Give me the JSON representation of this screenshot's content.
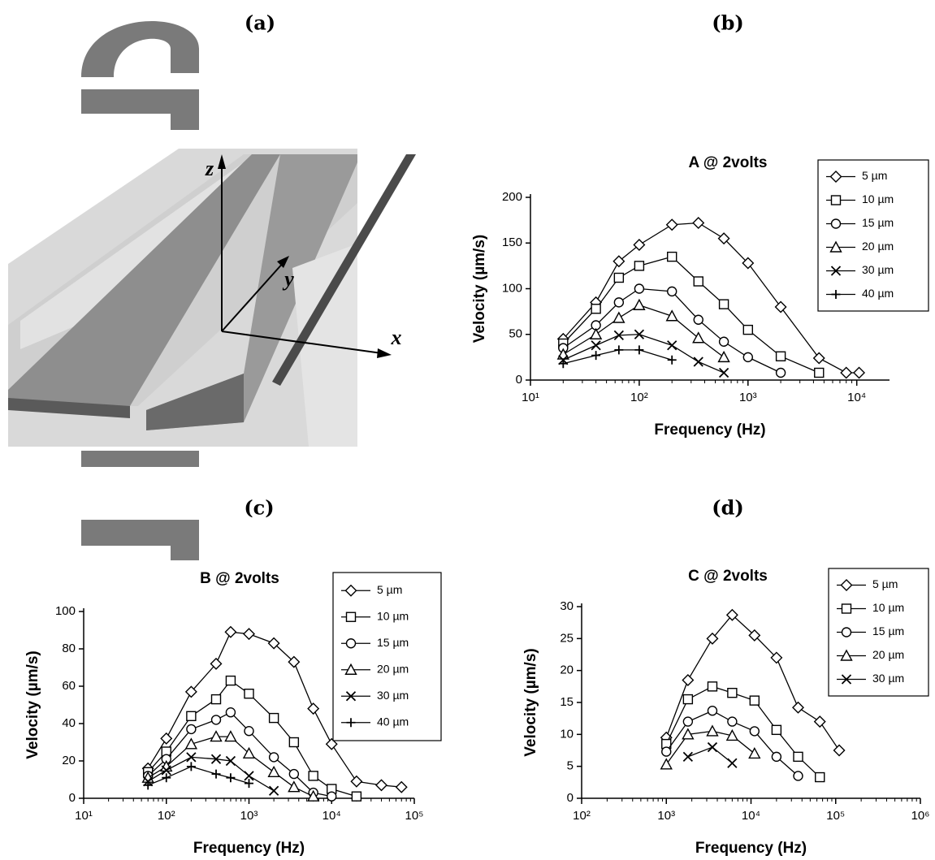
{
  "figure": {
    "panel_label": "(a)",
    "axis_z": "z",
    "axis_y": "y",
    "axis_x": "x"
  },
  "chart_data": [
    {
      "type": "line",
      "panel_label": "(b)",
      "title": "A @ 2volts",
      "xlabel": "Frequency (Hz)",
      "ylabel": "Velocity (µm/s)",
      "log_x": true,
      "xlim": [
        10,
        20000
      ],
      "ylim": [
        0,
        200
      ],
      "xticks": [
        {
          "value": 10,
          "label": "10¹"
        },
        {
          "value": 100,
          "label": "10²"
        },
        {
          "value": 1000,
          "label": "10³"
        },
        {
          "value": 10000,
          "label": "10⁴"
        }
      ],
      "yticks": [
        0,
        50,
        100,
        150,
        200
      ],
      "x": [
        20,
        40,
        65,
        100,
        200,
        350,
        600,
        1000,
        2000,
        4500,
        8000,
        10500
      ],
      "series": [
        {
          "name": "5 µm",
          "marker": "diamond",
          "color": "#000000",
          "values": [
            45,
            85,
            130,
            148,
            170,
            172,
            155,
            128,
            80,
            24,
            8,
            8
          ]
        },
        {
          "name": "10 µm",
          "marker": "square",
          "color": "#000000",
          "values": [
            40,
            78,
            112,
            125,
            135,
            108,
            83,
            55,
            26,
            8,
            null,
            null
          ]
        },
        {
          "name": "15 µm",
          "marker": "circle",
          "color": "#000000",
          "values": [
            35,
            60,
            85,
            100,
            97,
            66,
            42,
            25,
            8,
            null,
            null,
            null
          ]
        },
        {
          "name": "20 µm",
          "marker": "triangle",
          "color": "#000000",
          "values": [
            28,
            50,
            68,
            82,
            70,
            46,
            25,
            null,
            null,
            null,
            null,
            null
          ]
        },
        {
          "name": "30 µm",
          "marker": "cross",
          "color": "#000000",
          "values": [
            22,
            38,
            49,
            50,
            38,
            20,
            8,
            null,
            null,
            null,
            null,
            null
          ]
        },
        {
          "name": "40 µm",
          "marker": "plus",
          "color": "#000000",
          "values": [
            18,
            27,
            33,
            33,
            22,
            null,
            null,
            null,
            null,
            null,
            null,
            null
          ]
        }
      ]
    },
    {
      "type": "line",
      "panel_label": "(c)",
      "title": "B @ 2volts",
      "xlabel": "Frequency (Hz)",
      "ylabel": "Velocity (µm/s)",
      "log_x": true,
      "xlim": [
        10,
        100000
      ],
      "ylim": [
        0,
        100
      ],
      "xticks": [
        {
          "value": 10,
          "label": "10¹"
        },
        {
          "value": 100,
          "label": "10²"
        },
        {
          "value": 1000,
          "label": "10³"
        },
        {
          "value": 10000,
          "label": "10⁴"
        },
        {
          "value": 100000,
          "label": "10⁵"
        }
      ],
      "yticks": [
        0,
        20,
        40,
        60,
        80,
        100
      ],
      "x": [
        60,
        100,
        200,
        400,
        600,
        1000,
        2000,
        3500,
        6000,
        10000,
        20000,
        40000,
        70000
      ],
      "series": [
        {
          "name": "5 µm",
          "marker": "diamond",
          "color": "#000000",
          "values": [
            16,
            32,
            57,
            72,
            89,
            88,
            83,
            73,
            48,
            29,
            9,
            7,
            6
          ]
        },
        {
          "name": "10 µm",
          "marker": "square",
          "color": "#000000",
          "values": [
            14,
            25,
            44,
            53,
            63,
            56,
            43,
            30,
            12,
            5,
            1,
            null,
            null
          ]
        },
        {
          "name": "15 µm",
          "marker": "circle",
          "color": "#000000",
          "values": [
            12,
            21,
            37,
            42,
            46,
            36,
            22,
            13,
            3,
            1,
            null,
            null,
            null
          ]
        },
        {
          "name": "20 µm",
          "marker": "triangle",
          "color": "#000000",
          "values": [
            11,
            17,
            29,
            33,
            33,
            24,
            14,
            6,
            1,
            null,
            null,
            null,
            null
          ]
        },
        {
          "name": "30 µm",
          "marker": "cross",
          "color": "#000000",
          "values": [
            9,
            15,
            22,
            21,
            20,
            12,
            4,
            null,
            null,
            null,
            null,
            null,
            null
          ]
        },
        {
          "name": "40 µm",
          "marker": "plus",
          "color": "#000000",
          "values": [
            7,
            11,
            17,
            13,
            11,
            8,
            null,
            null,
            null,
            null,
            null,
            null,
            null
          ]
        }
      ]
    },
    {
      "type": "line",
      "panel_label": "(d)",
      "title": "C @ 2volts",
      "xlabel": "Frequency (Hz)",
      "ylabel": "Velocity (µm/s)",
      "log_x": true,
      "xlim": [
        100,
        1000000
      ],
      "ylim": [
        0,
        30
      ],
      "xticks": [
        {
          "value": 100,
          "label": "10²"
        },
        {
          "value": 1000,
          "label": "10³"
        },
        {
          "value": 10000,
          "label": "10⁴"
        },
        {
          "value": 100000,
          "label": "10⁵"
        },
        {
          "value": 1000000,
          "label": "10⁶"
        }
      ],
      "yticks": [
        0,
        5,
        10,
        15,
        20,
        25,
        30
      ],
      "x": [
        1000,
        1800,
        3500,
        6000,
        11000,
        20000,
        36000,
        65000,
        110000
      ],
      "series": [
        {
          "name": "5 µm",
          "marker": "diamond",
          "color": "#000000",
          "values": [
            9.5,
            18.5,
            25,
            28.7,
            25.5,
            22,
            14.2,
            12,
            7.5
          ]
        },
        {
          "name": "10 µm",
          "marker": "square",
          "color": "#000000",
          "values": [
            8.5,
            15.5,
            17.5,
            16.5,
            15.3,
            10.7,
            6.5,
            3.3,
            null
          ]
        },
        {
          "name": "15 µm",
          "marker": "circle",
          "color": "#000000",
          "values": [
            7.3,
            12,
            13.7,
            12,
            10.5,
            6.5,
            3.5,
            null,
            null
          ]
        },
        {
          "name": "20 µm",
          "marker": "triangle",
          "color": "#000000",
          "values": [
            5.3,
            10,
            10.5,
            9.8,
            7,
            null,
            null,
            null,
            null
          ]
        },
        {
          "name": "30 µm",
          "marker": "cross",
          "color": "#000000",
          "values": [
            null,
            6.5,
            8,
            5.5,
            null,
            null,
            null,
            null,
            null
          ]
        }
      ]
    }
  ]
}
